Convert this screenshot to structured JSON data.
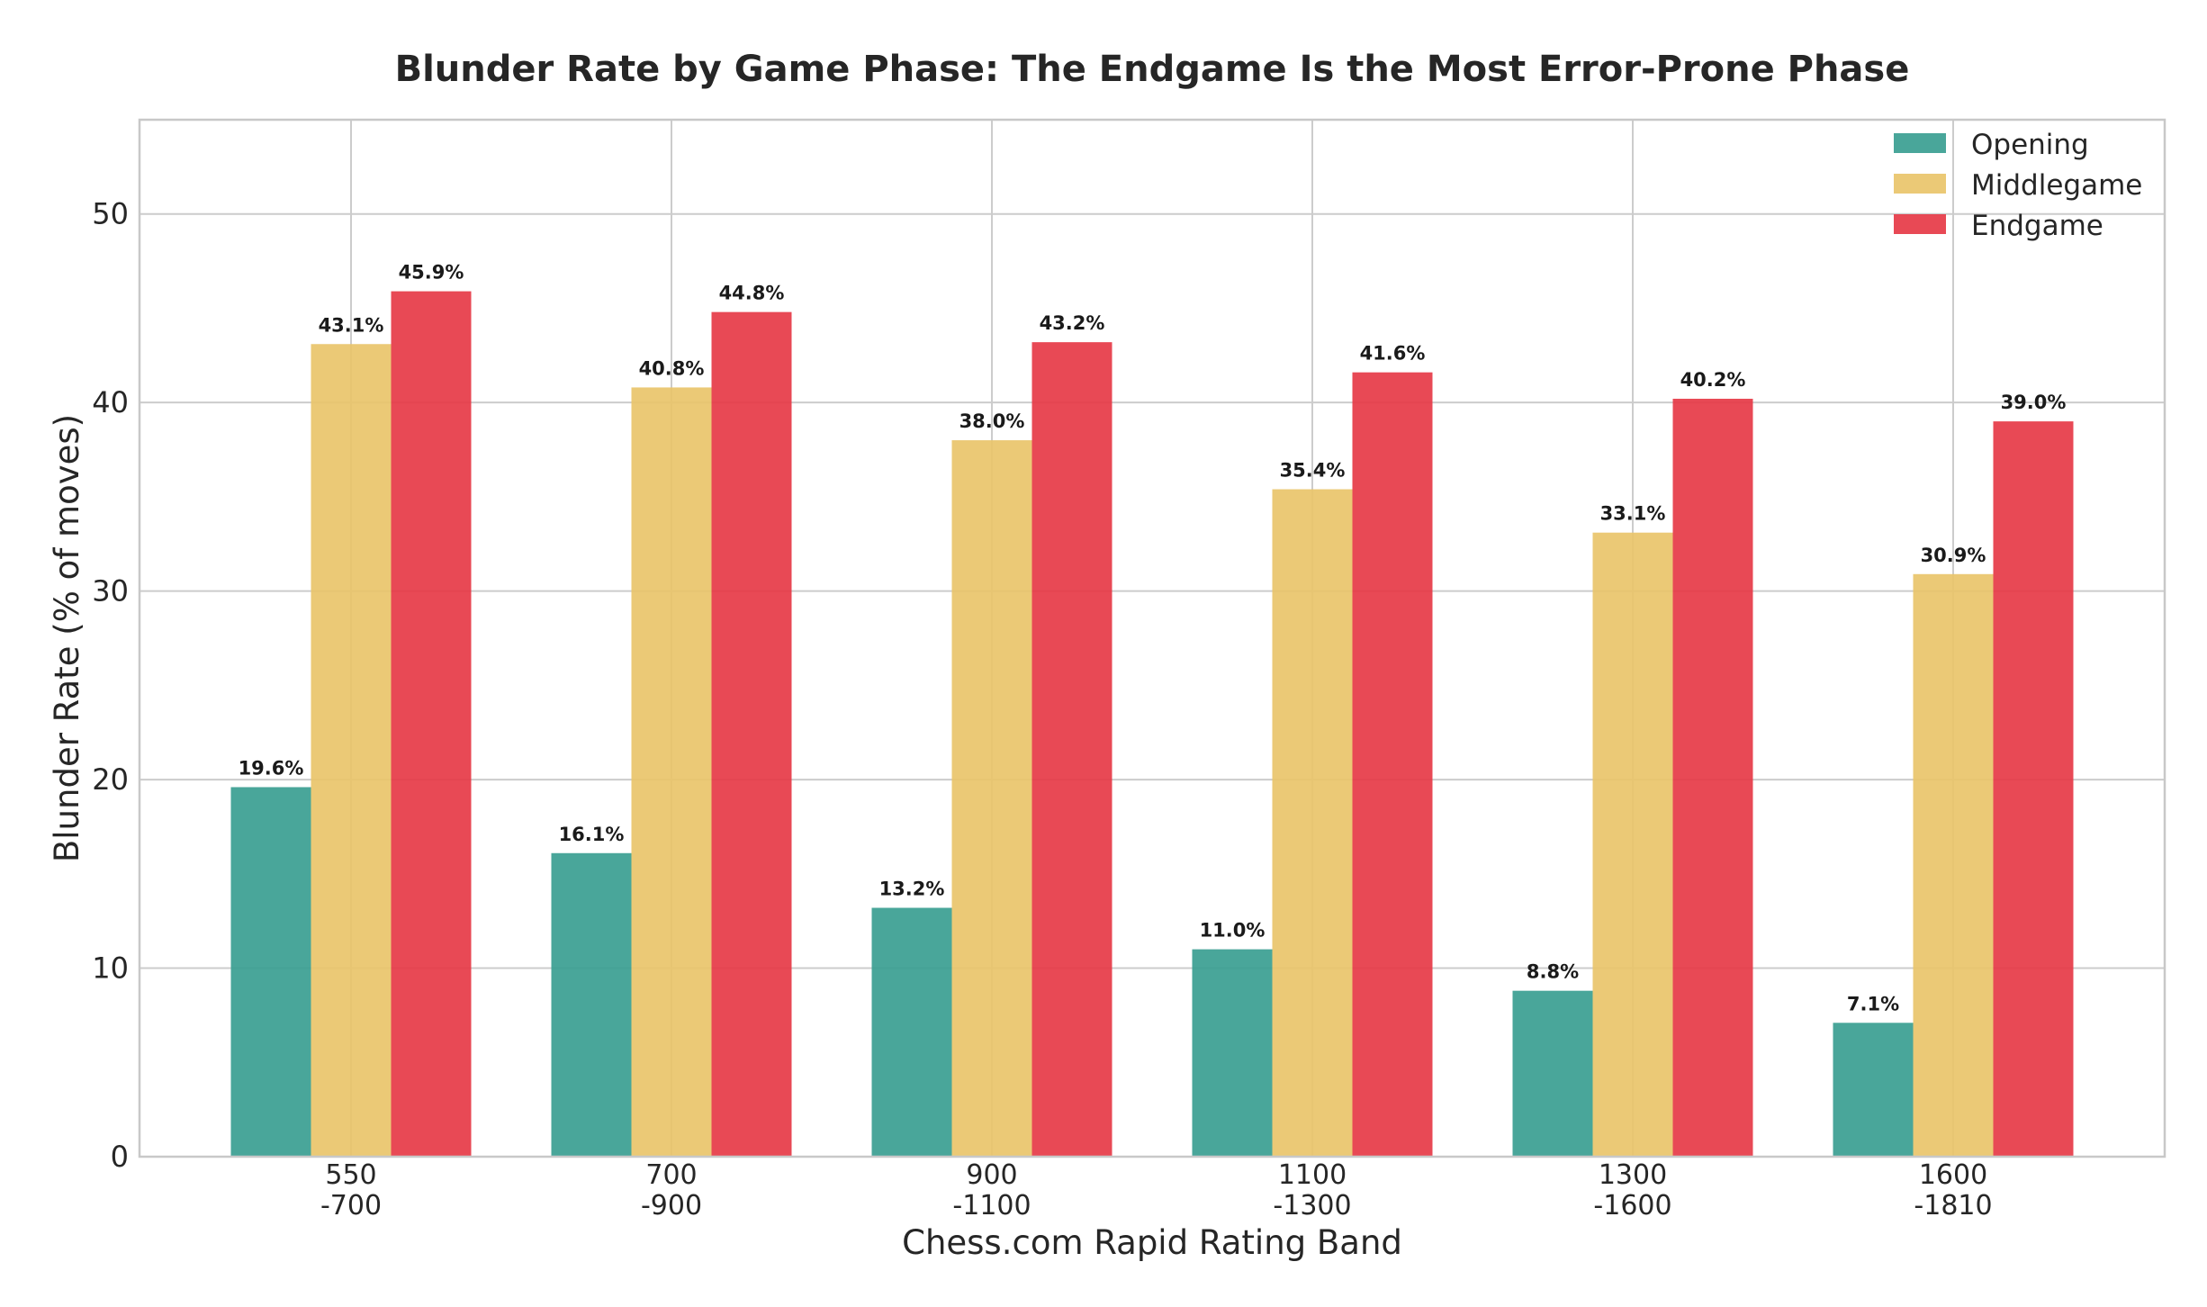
{
  "chart_data": {
    "type": "bar",
    "title": "Blunder Rate by Game Phase: The Endgame Is the Most Error-Prone Phase",
    "xlabel": "Chess.com Rapid Rating Band",
    "ylabel": "Blunder Rate (% of moves)",
    "categories": [
      [
        "550",
        "-700"
      ],
      [
        "700",
        "-900"
      ],
      [
        "900",
        "-1100"
      ],
      [
        "1100",
        "-1300"
      ],
      [
        "1300",
        "-1600"
      ],
      [
        "1600",
        "-1810"
      ]
    ],
    "series": [
      {
        "name": "Opening",
        "color": "#3a9e91",
        "values": [
          19.6,
          16.1,
          13.2,
          11.0,
          8.8,
          7.1
        ],
        "labels": [
          "19.6%",
          "16.1%",
          "13.2%",
          "11.0%",
          "8.8%",
          "7.1%"
        ]
      },
      {
        "name": "Middlegame",
        "color": "#e9c46a",
        "values": [
          43.1,
          40.8,
          38.0,
          35.4,
          33.1,
          30.9
        ],
        "labels": [
          "43.1%",
          "40.8%",
          "38.0%",
          "35.4%",
          "33.1%",
          "30.9%"
        ]
      },
      {
        "name": "Endgame",
        "color": "#e63946",
        "values": [
          45.9,
          44.8,
          43.2,
          41.6,
          40.2,
          39.0
        ],
        "labels": [
          "45.9%",
          "44.8%",
          "43.2%",
          "41.6%",
          "40.2%",
          "39.0%"
        ]
      }
    ],
    "ylim": [
      0,
      55
    ],
    "yticks": [
      0,
      10,
      20,
      30,
      40,
      50
    ],
    "grid": true,
    "legend_position": "top-right"
  }
}
